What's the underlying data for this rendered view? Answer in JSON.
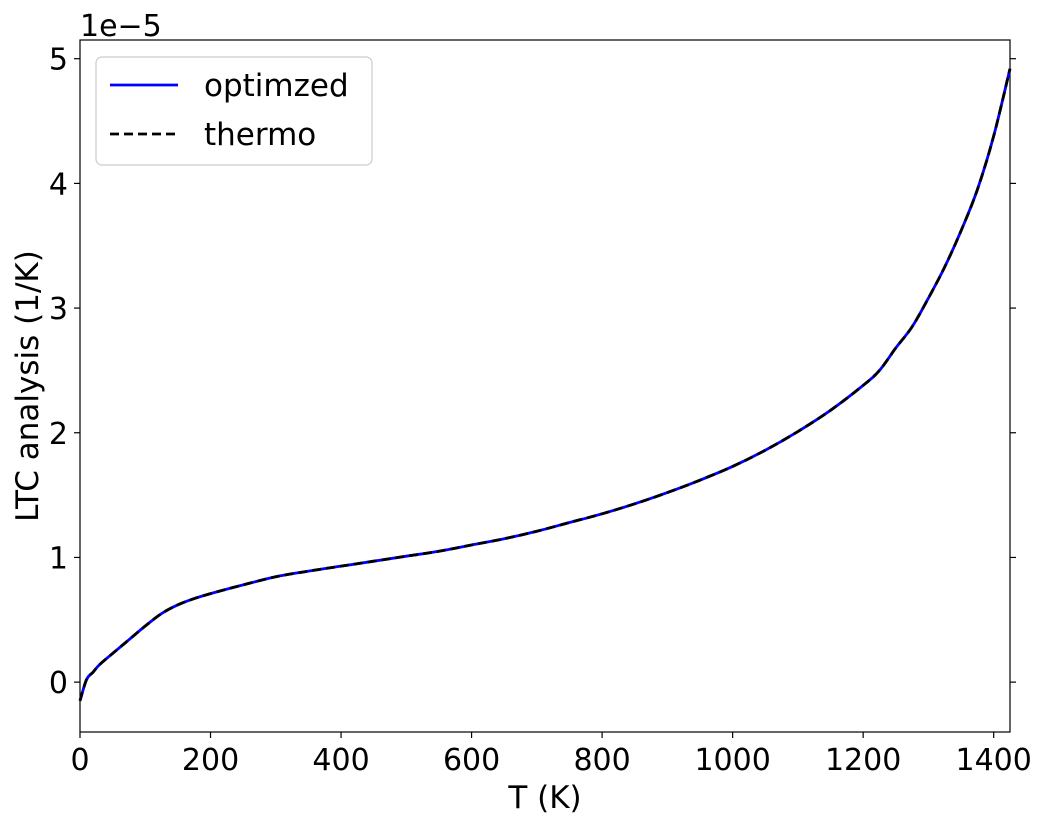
{
  "chart_data": {
    "type": "line",
    "title": "",
    "xlabel": "T (K)",
    "ylabel": "LTC analysis (1/K)",
    "y_offset_label": "1e−5",
    "y_scale": 1e-05,
    "xlim": [
      0,
      1425
    ],
    "ylim": [
      -4e-06,
      5.15e-05
    ],
    "x_ticks": [
      0,
      200,
      400,
      600,
      800,
      1000,
      1200,
      1400
    ],
    "x_tick_labels": [
      "0",
      "200",
      "400",
      "600",
      "800",
      "1000",
      "1200",
      "1400"
    ],
    "y_ticks": [
      0,
      1e-05,
      2e-05,
      3e-05,
      4e-05,
      5e-05
    ],
    "y_tick_labels": [
      "0",
      "1",
      "2",
      "3",
      "4",
      "5"
    ],
    "grid": false,
    "legend_position": "top-left",
    "x": [
      0,
      10,
      20,
      30,
      50,
      75,
      100,
      125,
      150,
      175,
      200,
      250,
      300,
      350,
      400,
      450,
      500,
      550,
      600,
      650,
      700,
      750,
      800,
      850,
      900,
      950,
      1000,
      1050,
      1100,
      1150,
      1200,
      1225,
      1250,
      1275,
      1300,
      1325,
      1350,
      1375,
      1400,
      1425
    ],
    "series": [
      {
        "name": "optimzed",
        "color": "#0000ff",
        "style": "solid",
        "values": [
          -1.5e-06,
          2e-07,
          8e-07,
          1.4e-06,
          2.3e-06,
          3.4e-06,
          4.5e-06,
          5.5e-06,
          6.2e-06,
          6.7e-06,
          7.1e-06,
          7.8e-06,
          8.45e-06,
          8.9e-06,
          9.3e-06,
          9.7e-06,
          1.01e-05,
          1.05e-05,
          1.1e-05,
          1.15e-05,
          1.21e-05,
          1.28e-05,
          1.35e-05,
          1.43e-05,
          1.52e-05,
          1.62e-05,
          1.73e-05,
          1.86e-05,
          2.01e-05,
          2.18e-05,
          2.38e-05,
          2.5e-05,
          2.68e-05,
          2.85e-05,
          3.08e-05,
          3.33e-05,
          3.62e-05,
          3.95e-05,
          4.38e-05,
          4.92e-05
        ]
      },
      {
        "name": "thermo",
        "color": "#000000",
        "style": "dashed",
        "values": [
          -1.5e-06,
          2e-07,
          8e-07,
          1.4e-06,
          2.3e-06,
          3.4e-06,
          4.5e-06,
          5.5e-06,
          6.2e-06,
          6.7e-06,
          7.1e-06,
          7.8e-06,
          8.45e-06,
          8.9e-06,
          9.3e-06,
          9.7e-06,
          1.01e-05,
          1.05e-05,
          1.1e-05,
          1.15e-05,
          1.21e-05,
          1.28e-05,
          1.35e-05,
          1.43e-05,
          1.52e-05,
          1.62e-05,
          1.73e-05,
          1.86e-05,
          2.01e-05,
          2.18e-05,
          2.38e-05,
          2.5e-05,
          2.68e-05,
          2.85e-05,
          3.08e-05,
          3.33e-05,
          3.62e-05,
          3.95e-05,
          4.38e-05,
          4.92e-05
        ]
      }
    ]
  }
}
